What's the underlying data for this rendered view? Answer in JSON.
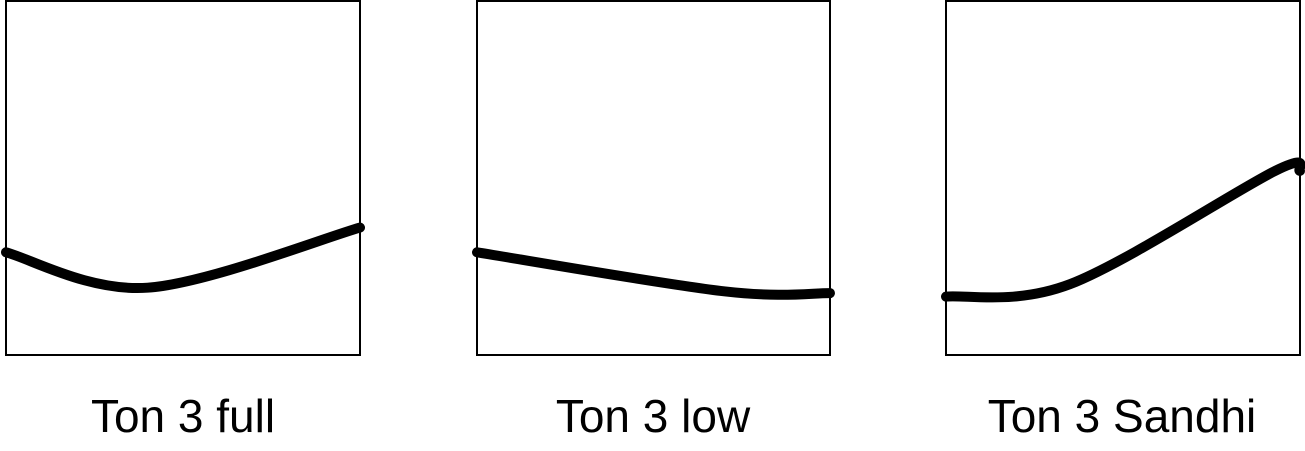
{
  "figure": {
    "colors": {
      "curve": "#000000",
      "frame": "#000000",
      "background": "#ffffff"
    },
    "panels": [
      {
        "label": "Ton 3 full",
        "contour": [
          [
            0.0,
            0.29
          ],
          [
            0.4,
            0.19
          ],
          [
            1.0,
            0.36
          ]
        ]
      },
      {
        "label": "Ton 3 low",
        "contour": [
          [
            0.0,
            0.29
          ],
          [
            0.7,
            0.18
          ],
          [
            1.0,
            0.175
          ]
        ]
      },
      {
        "label": "Ton 3 Sandhi",
        "contour": [
          [
            0.0,
            0.165
          ],
          [
            0.35,
            0.2
          ],
          [
            0.93,
            0.52
          ],
          [
            1.0,
            0.52
          ]
        ]
      }
    ]
  }
}
